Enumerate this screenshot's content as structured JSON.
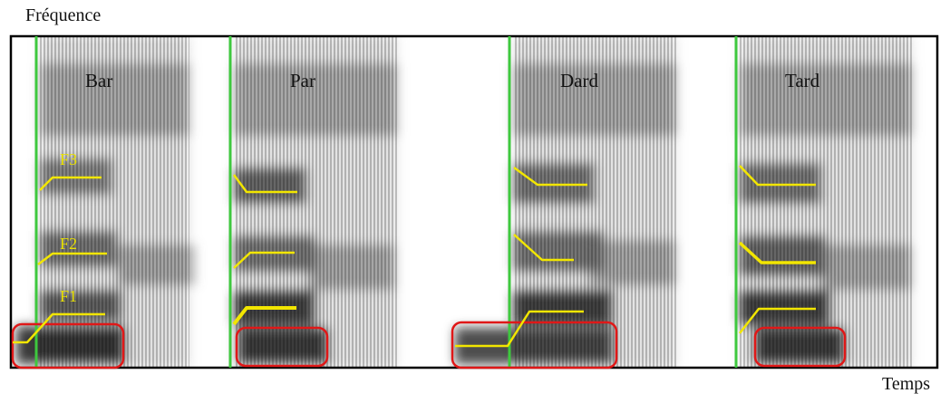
{
  "axes": {
    "y_label": "Fréquence",
    "x_label": "Temps"
  },
  "words": [
    "Bar",
    "Par",
    "Dard",
    "Tard"
  ],
  "formant_labels": [
    "F3",
    "F2",
    "F1"
  ],
  "colors": {
    "frame": "#000000",
    "onset_line": "#3ec83e",
    "formant_track": "#f2e600",
    "formant_label": "#e8e000",
    "highlight_box": "#e01818",
    "spectrogram_dark": "#222222",
    "background": "#ffffff"
  }
}
